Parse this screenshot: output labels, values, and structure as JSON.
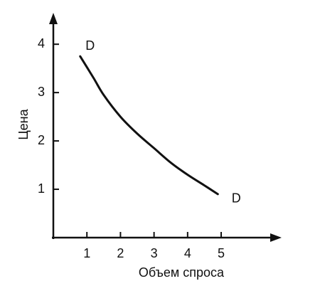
{
  "chart_data": {
    "type": "line",
    "x_label": "Объем спроса",
    "y_label": "Цена",
    "series": [
      {
        "name": "D",
        "color": "#111111",
        "x": [
          0.8,
          1.2,
          1.5,
          2,
          2.5,
          3,
          3.5,
          4,
          4.5,
          4.9
        ],
        "values": [
          3.75,
          3.3,
          2.95,
          2.5,
          2.15,
          1.85,
          1.55,
          1.3,
          1.08,
          0.9
        ]
      }
    ],
    "curve_labels": [
      "D",
      "D"
    ],
    "xlim": [
      0,
      6.8
    ],
    "ylim": [
      0,
      4.65
    ],
    "xticks": [
      1,
      2,
      3,
      4,
      5
    ],
    "yticks": [
      1,
      2,
      3,
      4
    ],
    "grid": false
  }
}
